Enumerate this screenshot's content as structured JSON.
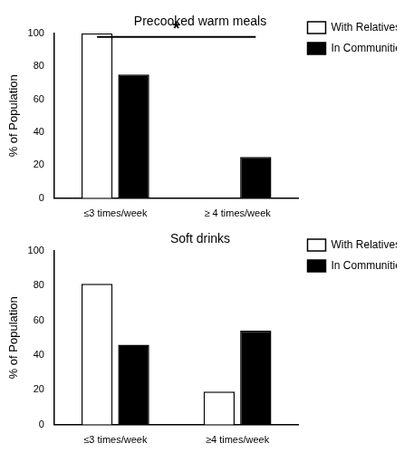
{
  "chart_data": [
    {
      "type": "bar",
      "title": "Precooked warm meals",
      "categories": [
        "≤3 times/week",
        "≥ 4 times/week"
      ],
      "series": [
        {
          "name": "With Relatives",
          "color": "#ffffff",
          "values": [
            100,
            0
          ]
        },
        {
          "name": "In Communities",
          "color": "#000000",
          "values": [
            75,
            25
          ]
        }
      ],
      "y_label": "% of Population",
      "ylim": [
        0,
        100
      ],
      "yticks": [
        0,
        20,
        40,
        60,
        80,
        100
      ],
      "grid": false,
      "legend": "top right",
      "annotation": "*"
    },
    {
      "type": "bar",
      "title": "Soft drinks",
      "categories": [
        "≤3 times/week",
        "≥4 times/week"
      ],
      "series": [
        {
          "name": "With Relatives",
          "color": "#ffffff",
          "values": [
            81,
            19
          ]
        },
        {
          "name": "In Communities",
          "color": "#000000",
          "values": [
            46,
            54
          ]
        }
      ],
      "y_label": "% of Population",
      "ylim": [
        0,
        100
      ],
      "yticks": [
        0,
        20,
        40,
        60,
        80,
        100
      ],
      "grid": false,
      "legend": "top right"
    }
  ]
}
